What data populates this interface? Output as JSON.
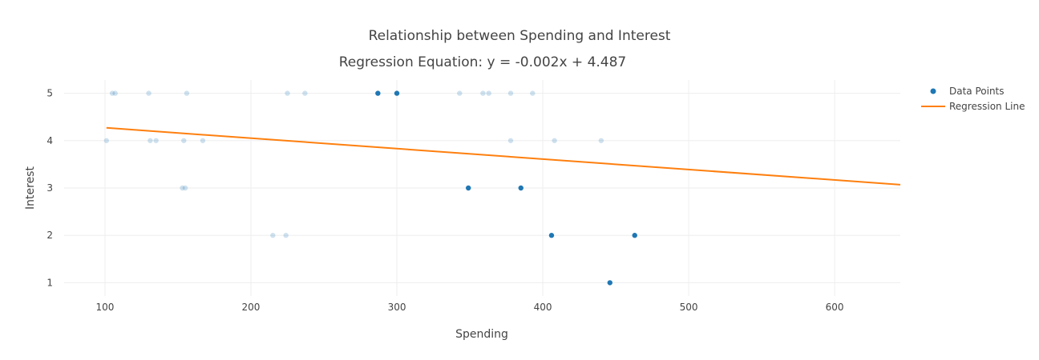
{
  "chart_data": {
    "type": "scatter",
    "title": "Relationship between Spending and Interest",
    "subtitle": "Regression Equation: y = -0.002x + 4.487",
    "xlabel": "Spending",
    "ylabel": "Interest",
    "xlim": [
      72,
      645
    ],
    "ylim": [
      0.72,
      5.28
    ],
    "xticks": [
      100,
      200,
      300,
      400,
      500,
      600
    ],
    "yticks": [
      1,
      2,
      3,
      4,
      5
    ],
    "grid": true,
    "legend_position": "top-right",
    "colors": {
      "points": "#1f77b4",
      "regression": "#ff7f0e",
      "grid": "#eeeeee",
      "text": "#444444"
    },
    "series": [
      {
        "name": "Data Points",
        "kind": "markers",
        "points": [
          {
            "x": 101,
            "y": 4,
            "faded": true
          },
          {
            "x": 105,
            "y": 5,
            "faded": true
          },
          {
            "x": 107,
            "y": 5,
            "faded": true
          },
          {
            "x": 130,
            "y": 5,
            "faded": true
          },
          {
            "x": 131,
            "y": 4,
            "faded": true
          },
          {
            "x": 135,
            "y": 4,
            "faded": true
          },
          {
            "x": 153,
            "y": 3,
            "faded": true
          },
          {
            "x": 154,
            "y": 4,
            "faded": true
          },
          {
            "x": 155,
            "y": 3,
            "faded": true
          },
          {
            "x": 156,
            "y": 5,
            "faded": true
          },
          {
            "x": 167,
            "y": 4,
            "faded": true
          },
          {
            "x": 215,
            "y": 2,
            "faded": true
          },
          {
            "x": 224,
            "y": 2,
            "faded": true
          },
          {
            "x": 225,
            "y": 5,
            "faded": true
          },
          {
            "x": 237,
            "y": 5,
            "faded": true
          },
          {
            "x": 287,
            "y": 5,
            "faded": false
          },
          {
            "x": 300,
            "y": 5,
            "faded": false
          },
          {
            "x": 343,
            "y": 5,
            "faded": true
          },
          {
            "x": 349,
            "y": 3,
            "faded": false
          },
          {
            "x": 359,
            "y": 5,
            "faded": true
          },
          {
            "x": 363,
            "y": 5,
            "faded": true
          },
          {
            "x": 378,
            "y": 5,
            "faded": true
          },
          {
            "x": 378,
            "y": 4,
            "faded": true
          },
          {
            "x": 385,
            "y": 3,
            "faded": false
          },
          {
            "x": 393,
            "y": 5,
            "faded": true
          },
          {
            "x": 406,
            "y": 2,
            "faded": false
          },
          {
            "x": 408,
            "y": 4,
            "faded": true
          },
          {
            "x": 440,
            "y": 4,
            "faded": true
          },
          {
            "x": 446,
            "y": 1,
            "faded": false
          },
          {
            "x": 463,
            "y": 2,
            "faded": false
          }
        ]
      },
      {
        "name": "Regression Line",
        "kind": "line",
        "x": [
          101,
          645
        ],
        "y": [
          4.27,
          3.07
        ]
      }
    ]
  }
}
